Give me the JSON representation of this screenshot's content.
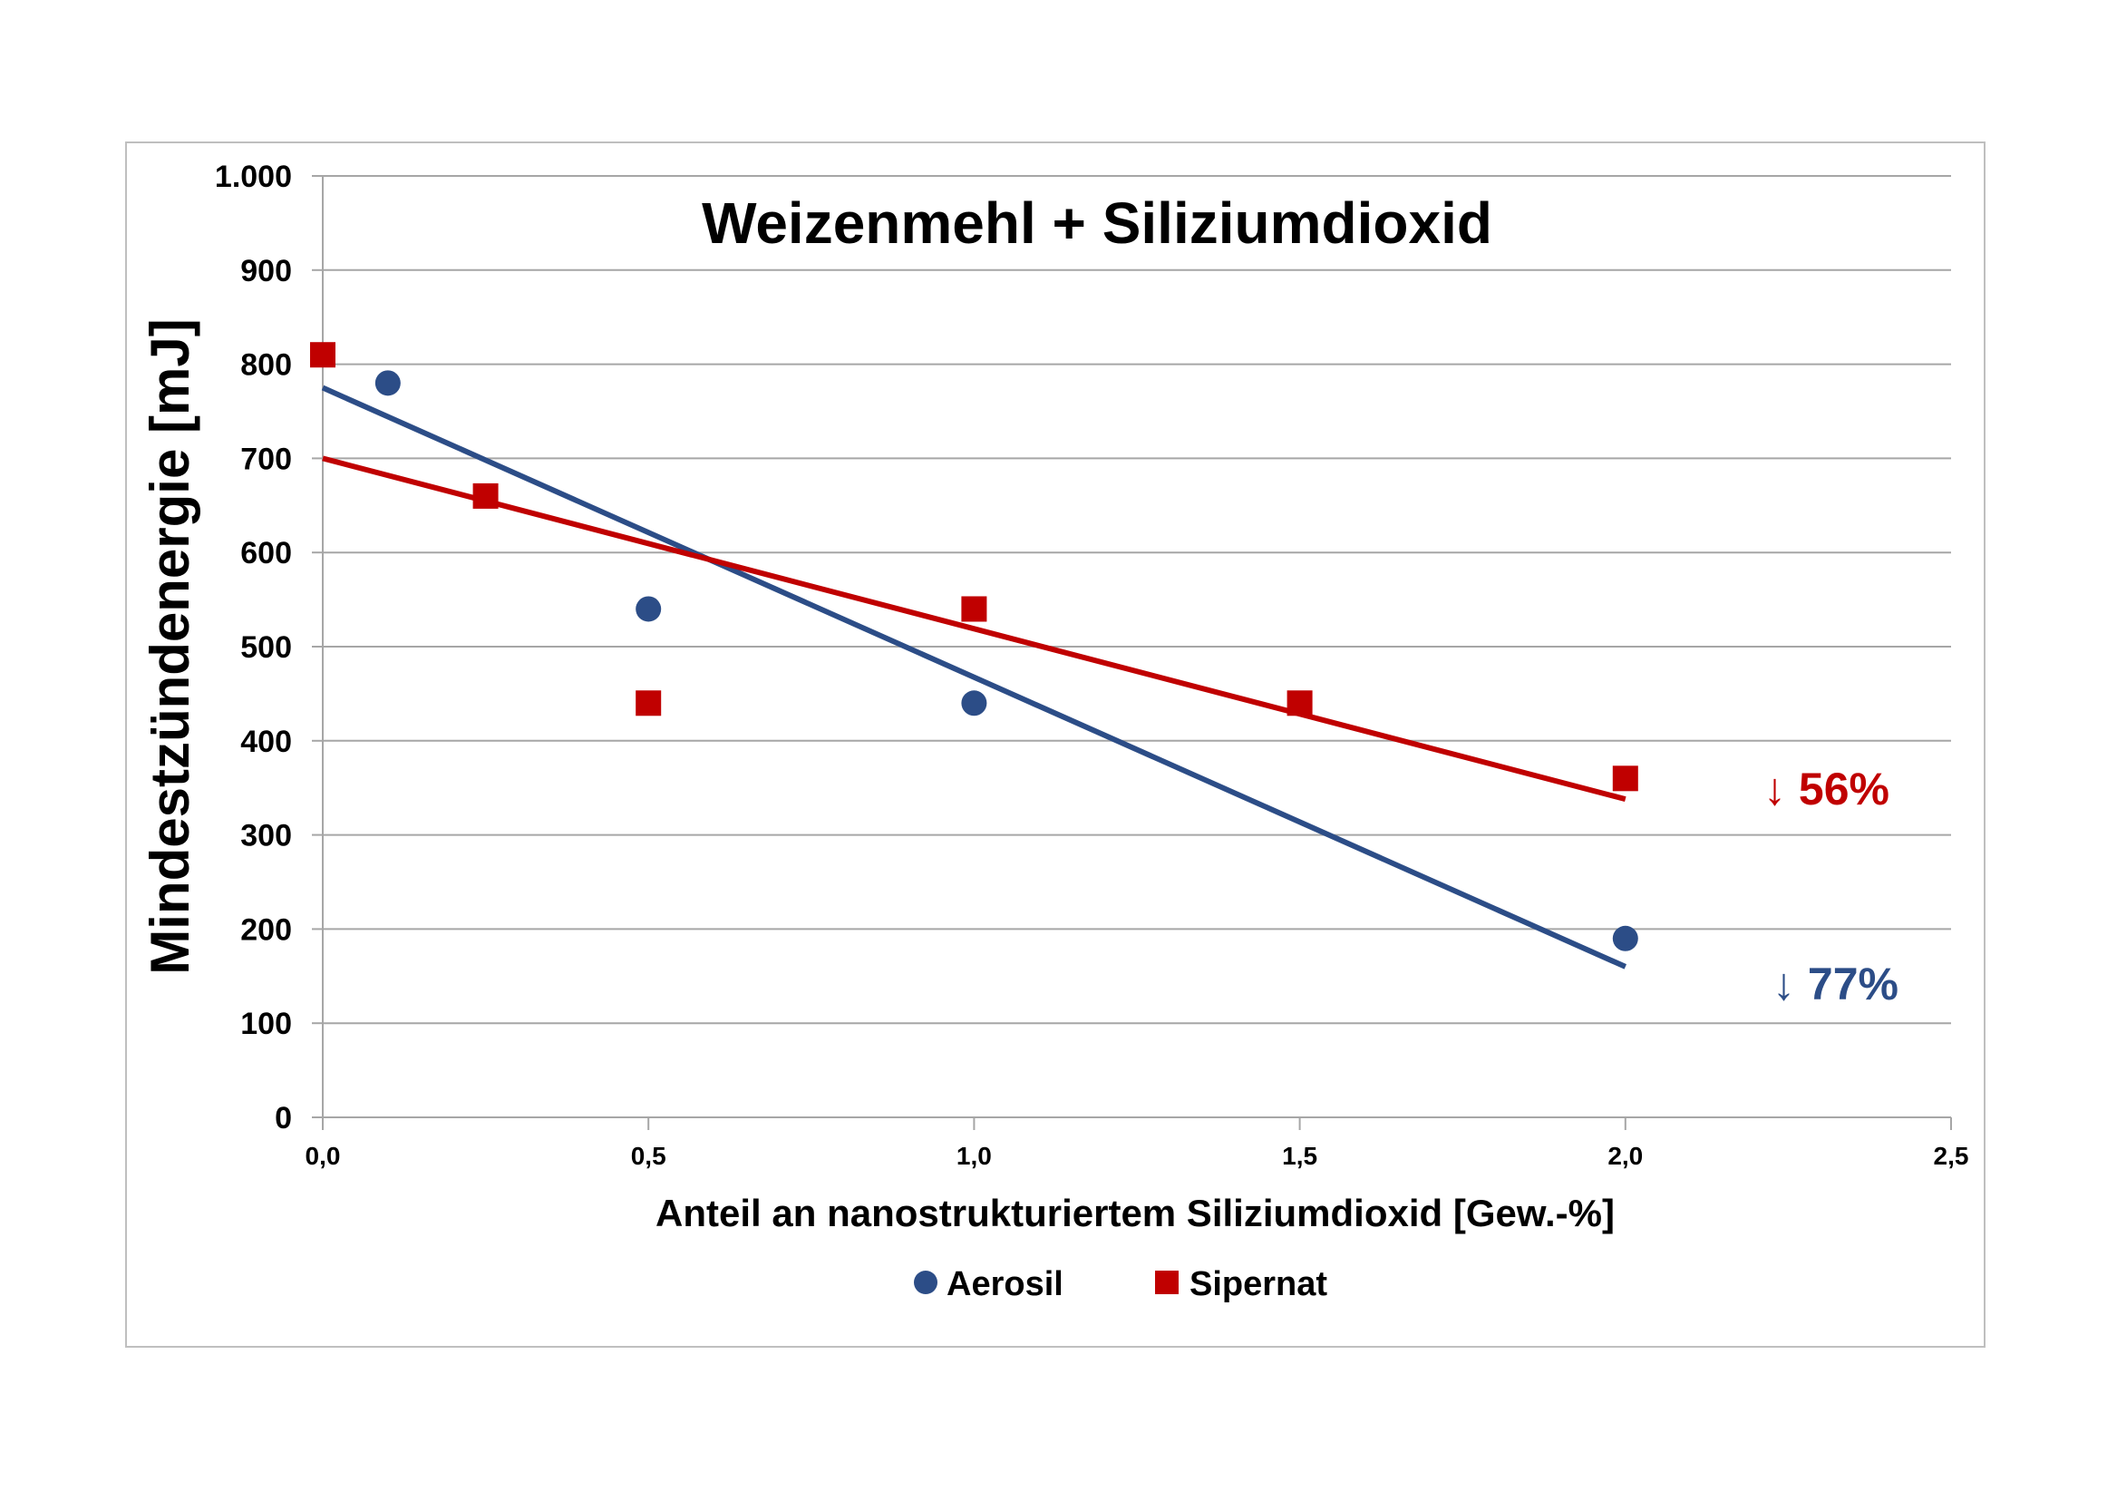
{
  "chart_data": {
    "type": "scatter",
    "title": "Weizenmehl + Siliziumdioxid",
    "xlabel": "Anteil an nanostrukturiertem Siliziumdioxid [Gew.-%]",
    "ylabel": "Mindestzündenergie [mJ]",
    "xlim": [
      0,
      2.5
    ],
    "ylim": [
      0,
      1000
    ],
    "x_ticks": [
      0,
      0.5,
      1.0,
      1.5,
      2.0,
      2.5
    ],
    "x_tick_labels": [
      "0,0",
      "0,5",
      "1,0",
      "1,5",
      "2,0",
      "2,5"
    ],
    "y_ticks": [
      0,
      100,
      200,
      300,
      400,
      500,
      600,
      700,
      800,
      900,
      1000
    ],
    "y_tick_labels": [
      "0",
      "100",
      "200",
      "300",
      "400",
      "500",
      "600",
      "700",
      "800",
      "900",
      "1.000"
    ],
    "grid": "horizontal",
    "legend_position": "bottom",
    "series": [
      {
        "name": "Aerosil",
        "marker": "circle",
        "color": "#2c4d87",
        "points": [
          [
            0.1,
            780
          ],
          [
            0.5,
            540
          ],
          [
            1.0,
            440
          ],
          [
            2.0,
            190
          ]
        ],
        "trendline": [
          [
            0,
            775
          ],
          [
            2.0,
            160
          ]
        ],
        "annotation": "↓ 77%"
      },
      {
        "name": "Sipernat",
        "marker": "square",
        "color": "#c00000",
        "points": [
          [
            0,
            810
          ],
          [
            0.25,
            660
          ],
          [
            0.5,
            440
          ],
          [
            1.0,
            540
          ],
          [
            1.5,
            440
          ],
          [
            2.0,
            360
          ]
        ],
        "trendline": [
          [
            0,
            700
          ],
          [
            2.0,
            338
          ]
        ],
        "annotation": "↓ 56%"
      }
    ]
  }
}
